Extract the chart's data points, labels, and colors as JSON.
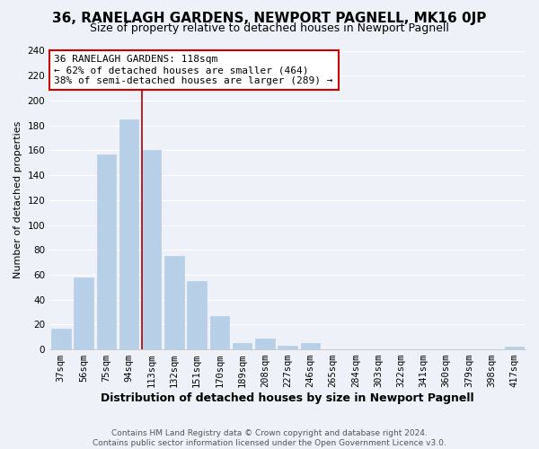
{
  "title": "36, RANELAGH GARDENS, NEWPORT PAGNELL, MK16 0JP",
  "subtitle": "Size of property relative to detached houses in Newport Pagnell",
  "xlabel": "Distribution of detached houses by size in Newport Pagnell",
  "ylabel": "Number of detached properties",
  "bar_labels": [
    "37sqm",
    "56sqm",
    "75sqm",
    "94sqm",
    "113sqm",
    "132sqm",
    "151sqm",
    "170sqm",
    "189sqm",
    "208sqm",
    "227sqm",
    "246sqm",
    "265sqm",
    "284sqm",
    "303sqm",
    "322sqm",
    "341sqm",
    "360sqm",
    "379sqm",
    "398sqm",
    "417sqm"
  ],
  "bar_values": [
    17,
    58,
    157,
    185,
    160,
    75,
    55,
    27,
    5,
    9,
    3,
    5,
    0,
    0,
    0,
    0,
    0,
    0,
    0,
    0,
    2
  ],
  "bar_color": "#b8cfe8",
  "vline_color": "#aa0000",
  "vline_index": 4,
  "ylim": [
    0,
    240
  ],
  "yticks": [
    0,
    20,
    40,
    60,
    80,
    100,
    120,
    140,
    160,
    180,
    200,
    220,
    240
  ],
  "annotation_title": "36 RANELAGH GARDENS: 118sqm",
  "annotation_line1": "← 62% of detached houses are smaller (464)",
  "annotation_line2": "38% of semi-detached houses are larger (289) →",
  "annotation_box_color": "#ffffff",
  "annotation_box_edge": "#cc0000",
  "footer_line1": "Contains HM Land Registry data © Crown copyright and database right 2024.",
  "footer_line2": "Contains public sector information licensed under the Open Government Licence v3.0.",
  "background_color": "#eef2f8",
  "grid_color": "#ffffff",
  "title_fontsize": 11,
  "subtitle_fontsize": 9,
  "xlabel_fontsize": 9,
  "ylabel_fontsize": 8,
  "tick_fontsize": 7.5,
  "annot_fontsize": 8,
  "footer_fontsize": 6.5
}
